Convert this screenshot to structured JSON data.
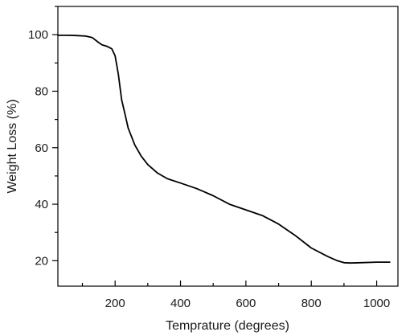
{
  "chart_data": {
    "type": "line",
    "title": "",
    "xlabel": "Temprature (degrees)",
    "ylabel": "Weight Loss (%)",
    "xlim": [
      25,
      1065
    ],
    "ylim": [
      11,
      110
    ],
    "x_ticks": [
      200,
      400,
      600,
      800,
      1000
    ],
    "y_ticks": [
      20,
      40,
      60,
      80,
      100
    ],
    "grid": false,
    "legend": "none",
    "series": [
      {
        "color": "#000000",
        "x": [
          25,
          50,
          80,
          110,
          130,
          150,
          160,
          175,
          190,
          200,
          210,
          220,
          230,
          240,
          250,
          260,
          280,
          300,
          330,
          360,
          400,
          450,
          500,
          550,
          600,
          650,
          700,
          750,
          800,
          850,
          880,
          900,
          920,
          950,
          1000,
          1040
        ],
        "y": [
          99.8,
          99.8,
          99.7,
          99.5,
          99,
          97.2,
          96.4,
          95.9,
          95,
          92.5,
          86,
          77,
          72,
          67,
          64,
          61,
          57,
          54,
          51,
          49,
          47.5,
          45.5,
          43,
          40,
          38,
          36,
          33,
          29,
          24.5,
          21.5,
          20,
          19.3,
          19.2,
          19.3,
          19.5,
          19.5
        ]
      }
    ]
  }
}
